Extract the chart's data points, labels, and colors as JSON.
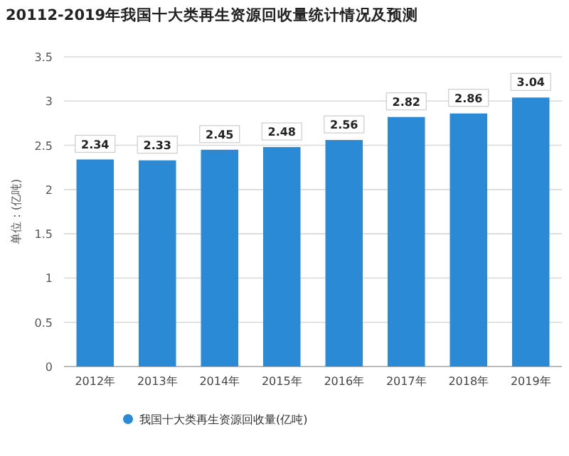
{
  "chart_data": {
    "type": "bar",
    "title": "20112-2019年我国十大类再生资源回收量统计情况及预测",
    "ylabel": "单位：(亿吨)",
    "categories": [
      "2012年",
      "2013年",
      "2014年",
      "2015年",
      "2016年",
      "2017年",
      "2018年",
      "2019年"
    ],
    "series": [
      {
        "name": "我国十大类再生资源回收量(亿吨)",
        "color": "#2a8ad6",
        "values": [
          2.34,
          2.33,
          2.45,
          2.48,
          2.56,
          2.82,
          2.86,
          3.04
        ]
      }
    ],
    "ylim": [
      0,
      3.5
    ],
    "yticks": [
      0,
      0.5,
      1,
      1.5,
      2,
      2.5,
      3,
      3.5
    ],
    "grid": "y",
    "legend": "bottom",
    "data_labels": true
  }
}
